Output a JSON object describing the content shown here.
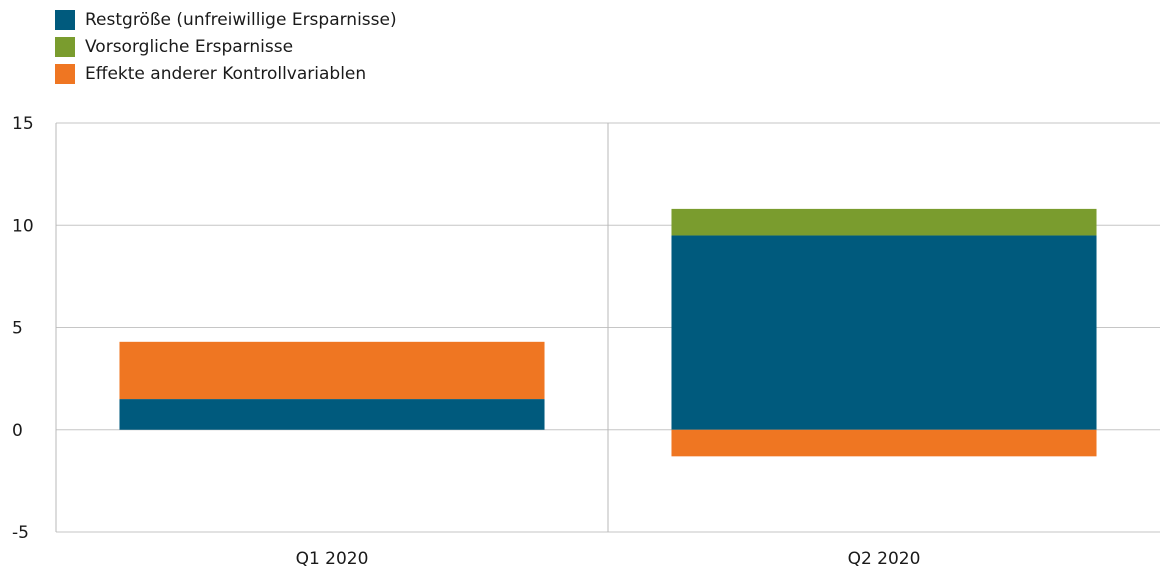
{
  "chart_data": {
    "type": "bar",
    "stacked": true,
    "categories": [
      "Q1 2020",
      "Q2 2020"
    ],
    "series": [
      {
        "name": "Restgröße (unfreiwillige Ersparnisse)",
        "values": [
          1.5,
          9.5
        ],
        "color": "#005a7d"
      },
      {
        "name": "Vorsorgliche Ersparnisse",
        "values": [
          0,
          1.3
        ],
        "color": "#7a9c2e"
      },
      {
        "name": "Effekte anderer Kontrollvariablen",
        "values": [
          2.8,
          -1.3
        ],
        "color": "#ef7622"
      }
    ],
    "ylim": [
      -5,
      15
    ],
    "yticks": [
      15,
      10,
      5,
      0,
      -5
    ],
    "grid": true,
    "legend_position": "top-left"
  }
}
